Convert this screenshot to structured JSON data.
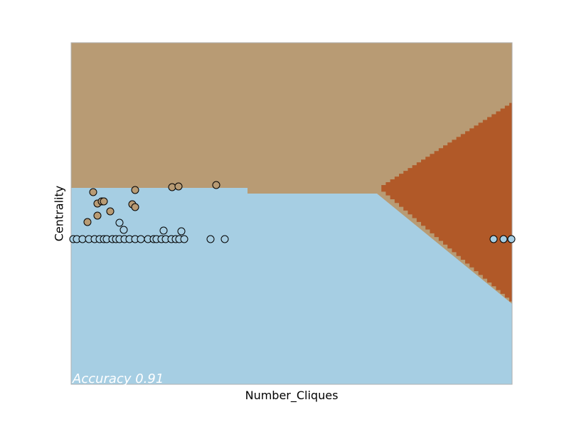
{
  "chart_data": {
    "type": "scatter",
    "title": "",
    "xlabel": "Number_Cliques",
    "ylabel": "Centrality",
    "annotation": "Accuracy 0.91",
    "xlim": [
      0,
      620
    ],
    "ylim": [
      0,
      480
    ],
    "grid": false,
    "ticks": false,
    "region_colors": {
      "class_a": "#b89b74",
      "class_b": "#a6cee3",
      "class_c": "#b15928"
    },
    "point_colors": {
      "class_a": "#b89b74",
      "class_b": "#a6cee3"
    },
    "decision_regions": {
      "boundary_ab_left": [
        [
          0,
          276
        ],
        [
          248,
          276
        ],
        [
          248,
          268
        ],
        [
          430,
          268
        ]
      ],
      "class_c_polygon": [
        [
          430,
          276
        ],
        [
          620,
          398
        ],
        [
          620,
          113
        ],
        [
          430,
          276
        ]
      ]
    },
    "series": [
      {
        "class": "class_a",
        "points": [
          [
            23,
            228
          ],
          [
            31,
            270
          ],
          [
            37,
            254
          ],
          [
            37,
            237
          ],
          [
            43,
            257
          ],
          [
            46,
            257
          ],
          [
            55,
            243
          ],
          [
            86,
            253
          ],
          [
            90,
            249
          ],
          [
            90,
            273
          ],
          [
            142,
            277
          ],
          [
            151,
            278
          ],
          [
            204,
            280
          ]
        ]
      },
      {
        "class": "class_b",
        "points": [
          [
            68,
            227
          ],
          [
            74,
            217
          ],
          [
            130,
            216
          ],
          [
            155,
            215
          ],
          [
            3,
            204
          ],
          [
            8,
            204
          ],
          [
            16,
            204
          ],
          [
            25,
            204
          ],
          [
            33,
            204
          ],
          [
            40,
            204
          ],
          [
            46,
            204
          ],
          [
            50,
            204
          ],
          [
            58,
            204
          ],
          [
            63,
            204
          ],
          [
            68,
            204
          ],
          [
            75,
            204
          ],
          [
            82,
            204
          ],
          [
            90,
            204
          ],
          [
            98,
            204
          ],
          [
            108,
            204
          ],
          [
            116,
            204
          ],
          [
            120,
            204
          ],
          [
            127,
            204
          ],
          [
            133,
            204
          ],
          [
            141,
            204
          ],
          [
            147,
            204
          ],
          [
            152,
            204
          ],
          [
            159,
            204
          ],
          [
            196,
            204
          ],
          [
            216,
            204
          ],
          [
            594,
            204
          ],
          [
            608,
            204
          ],
          [
            619,
            204
          ]
        ]
      }
    ]
  }
}
